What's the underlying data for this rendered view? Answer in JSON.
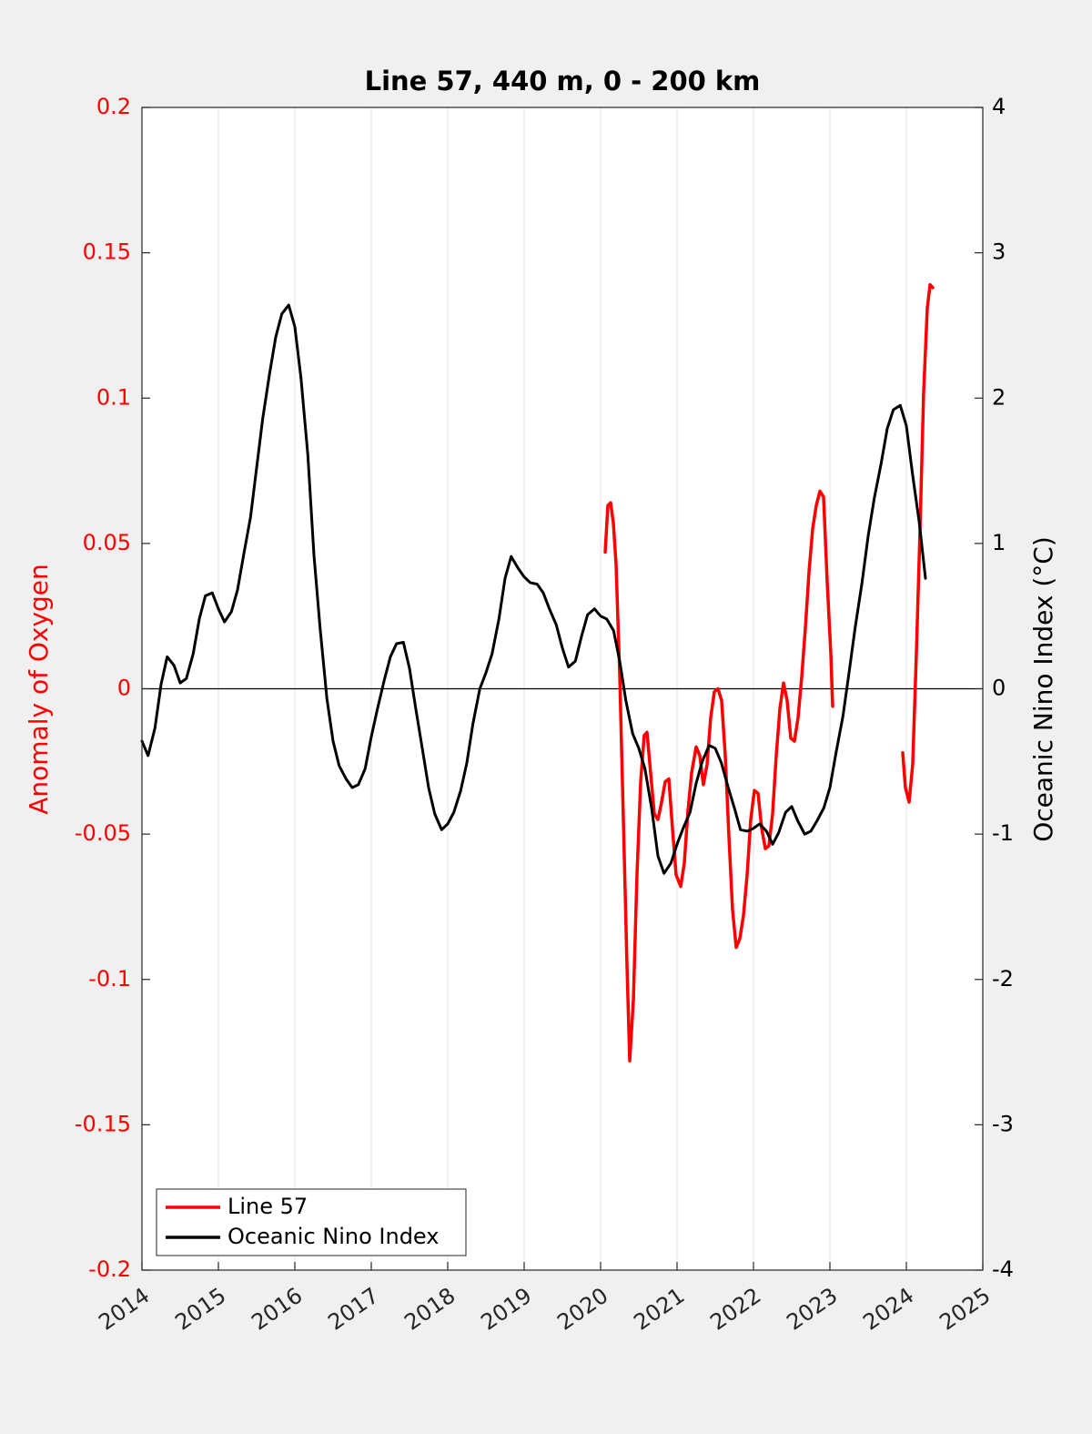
{
  "chart_data": {
    "type": "line",
    "title": "Line 57, 440 m, 0 - 200 km",
    "ylabel": "Anomaly of Oxygen",
    "y2label": "Oceanic Nino Index (°C)",
    "xlim": [
      2014,
      2025
    ],
    "xticks": [
      2014,
      2015,
      2016,
      2017,
      2018,
      2019,
      2020,
      2021,
      2022,
      2023,
      2024,
      2025
    ],
    "ylim": [
      -0.2,
      0.2
    ],
    "yticks": [
      -0.2,
      -0.15,
      -0.1,
      -0.05,
      0,
      0.05,
      0.1,
      0.15,
      0.2
    ],
    "y2lim": [
      -4,
      4
    ],
    "y2ticks": [
      -4,
      -3,
      -2,
      -1,
      0,
      1,
      2,
      3,
      4
    ],
    "grid": "x",
    "legend": "lower left",
    "series": [
      {
        "name": "Line 57",
        "color": "#ff0000",
        "axis": "y",
        "x": [
          2020.06,
          2020.095,
          2020.131,
          2020.167,
          2020.202,
          2020.25,
          2020.298,
          2020.345,
          2020.381,
          2020.429,
          2020.476,
          2020.524,
          2020.571,
          2020.607,
          2020.655,
          2020.702,
          2020.75,
          2020.798,
          2020.845,
          2020.893,
          2020.94,
          2020.988,
          2021.048,
          2021.095,
          2021.143,
          2021.19,
          2021.25,
          2021.298,
          2021.345,
          2021.393,
          2021.44,
          2021.488,
          2021.536,
          2021.583,
          2021.631,
          2021.679,
          2021.726,
          2021.774,
          2021.821,
          2021.869,
          2021.917,
          2021.964,
          2022.012,
          2022.06,
          2022.107,
          2022.155,
          2022.202,
          2022.25,
          2022.298,
          2022.345,
          2022.393,
          2022.44,
          2022.488,
          2022.536,
          2022.583,
          2022.631,
          2022.679,
          2022.726,
          2022.774,
          2022.821,
          2022.869,
          2022.917,
          2022.964,
          2023.012,
          2023.036,
          2023.5,
          2023.952,
          2023.988,
          2024.036,
          2024.083,
          2024.131,
          2024.179,
          2024.226,
          2024.274,
          2024.31,
          2024.345
        ],
        "values": [
          0.047,
          0.063,
          0.064,
          0.057,
          0.043,
          0.005,
          -0.045,
          -0.095,
          -0.128,
          -0.107,
          -0.064,
          -0.032,
          -0.016,
          -0.015,
          -0.029,
          -0.043,
          -0.045,
          -0.039,
          -0.032,
          -0.031,
          -0.048,
          -0.064,
          -0.068,
          -0.06,
          -0.042,
          -0.029,
          -0.02,
          -0.023,
          -0.033,
          -0.026,
          -0.01,
          -0.001,
          0,
          -0.004,
          -0.023,
          -0.051,
          -0.076,
          -0.089,
          -0.086,
          -0.078,
          -0.064,
          -0.045,
          -0.035,
          -0.036,
          -0.048,
          -0.055,
          -0.054,
          -0.043,
          -0.023,
          -0.007,
          0.002,
          -0.004,
          -0.017,
          -0.018,
          -0.01,
          0.004,
          0.021,
          0.04,
          0.055,
          0.063,
          0.068,
          0.066,
          0.037,
          0.012,
          -0.006,
          null,
          -0.022,
          -0.034,
          -0.039,
          -0.026,
          0.012,
          0.055,
          0.102,
          0.131,
          0.139,
          0.138
        ]
      },
      {
        "name": "Oceanic Nino Index",
        "color": "#000000",
        "axis": "y2",
        "x": [
          2014.0,
          2014.08,
          2014.17,
          2014.25,
          2014.33,
          2014.42,
          2014.5,
          2014.58,
          2014.67,
          2014.75,
          2014.83,
          2014.92,
          2015.0,
          2015.08,
          2015.17,
          2015.25,
          2015.33,
          2015.42,
          2015.5,
          2015.58,
          2015.67,
          2015.75,
          2015.83,
          2015.92,
          2016.0,
          2016.08,
          2016.17,
          2016.25,
          2016.33,
          2016.42,
          2016.5,
          2016.58,
          2016.67,
          2016.75,
          2016.83,
          2016.92,
          2017.0,
          2017.08,
          2017.17,
          2017.25,
          2017.33,
          2017.42,
          2017.5,
          2017.58,
          2017.67,
          2017.75,
          2017.83,
          2017.92,
          2018.0,
          2018.08,
          2018.17,
          2018.25,
          2018.33,
          2018.42,
          2018.5,
          2018.58,
          2018.67,
          2018.75,
          2018.83,
          2018.92,
          2019.0,
          2019.08,
          2019.17,
          2019.25,
          2019.33,
          2019.42,
          2019.5,
          2019.58,
          2019.67,
          2019.75,
          2019.83,
          2019.92,
          2020.0,
          2020.08,
          2020.17,
          2020.25,
          2020.33,
          2020.42,
          2020.5,
          2020.58,
          2020.67,
          2020.75,
          2020.83,
          2020.92,
          2021.0,
          2021.08,
          2021.17,
          2021.25,
          2021.33,
          2021.42,
          2021.5,
          2021.58,
          2021.67,
          2021.75,
          2021.83,
          2021.92,
          2022.0,
          2022.08,
          2022.17,
          2022.25,
          2022.33,
          2022.42,
          2022.5,
          2022.58,
          2022.67,
          2022.75,
          2022.83,
          2022.92,
          2023.0,
          2023.08,
          2023.17,
          2023.25,
          2023.33,
          2023.42,
          2023.5,
          2023.58,
          2023.67,
          2023.75,
          2023.83,
          2023.92,
          2024.0,
          2024.08,
          2024.17,
          2024.25
        ],
        "values": [
          -0.36,
          -0.46,
          -0.27,
          0.03,
          0.22,
          0.16,
          0.04,
          0.07,
          0.24,
          0.48,
          0.64,
          0.66,
          0.55,
          0.46,
          0.53,
          0.68,
          0.92,
          1.18,
          1.52,
          1.86,
          2.17,
          2.42,
          2.58,
          2.64,
          2.49,
          2.14,
          1.61,
          0.92,
          0.42,
          -0.07,
          -0.36,
          -0.53,
          -0.62,
          -0.68,
          -0.66,
          -0.55,
          -0.33,
          -0.14,
          0.06,
          0.22,
          0.31,
          0.32,
          0.14,
          -0.13,
          -0.42,
          -0.68,
          -0.86,
          -0.97,
          -0.93,
          -0.85,
          -0.7,
          -0.51,
          -0.24,
          0,
          0.11,
          0.24,
          0.48,
          0.76,
          0.91,
          0.83,
          0.77,
          0.73,
          0.72,
          0.66,
          0.55,
          0.44,
          0.28,
          0.15,
          0.19,
          0.36,
          0.51,
          0.55,
          0.5,
          0.48,
          0.4,
          0.19,
          -0.08,
          -0.31,
          -0.41,
          -0.55,
          -0.83,
          -1.15,
          -1.27,
          -1.2,
          -1.07,
          -0.96,
          -0.85,
          -0.65,
          -0.5,
          -0.39,
          -0.41,
          -0.51,
          -0.68,
          -0.82,
          -0.97,
          -0.98,
          -0.96,
          -0.93,
          -0.98,
          -1.07,
          -0.99,
          -0.85,
          -0.81,
          -0.91,
          -1.0,
          -0.98,
          -0.91,
          -0.82,
          -0.68,
          -0.44,
          -0.19,
          0.11,
          0.42,
          0.73,
          1.05,
          1.31,
          1.55,
          1.79,
          1.92,
          1.95,
          1.81,
          1.48,
          1.14,
          0.76
        ]
      }
    ]
  }
}
